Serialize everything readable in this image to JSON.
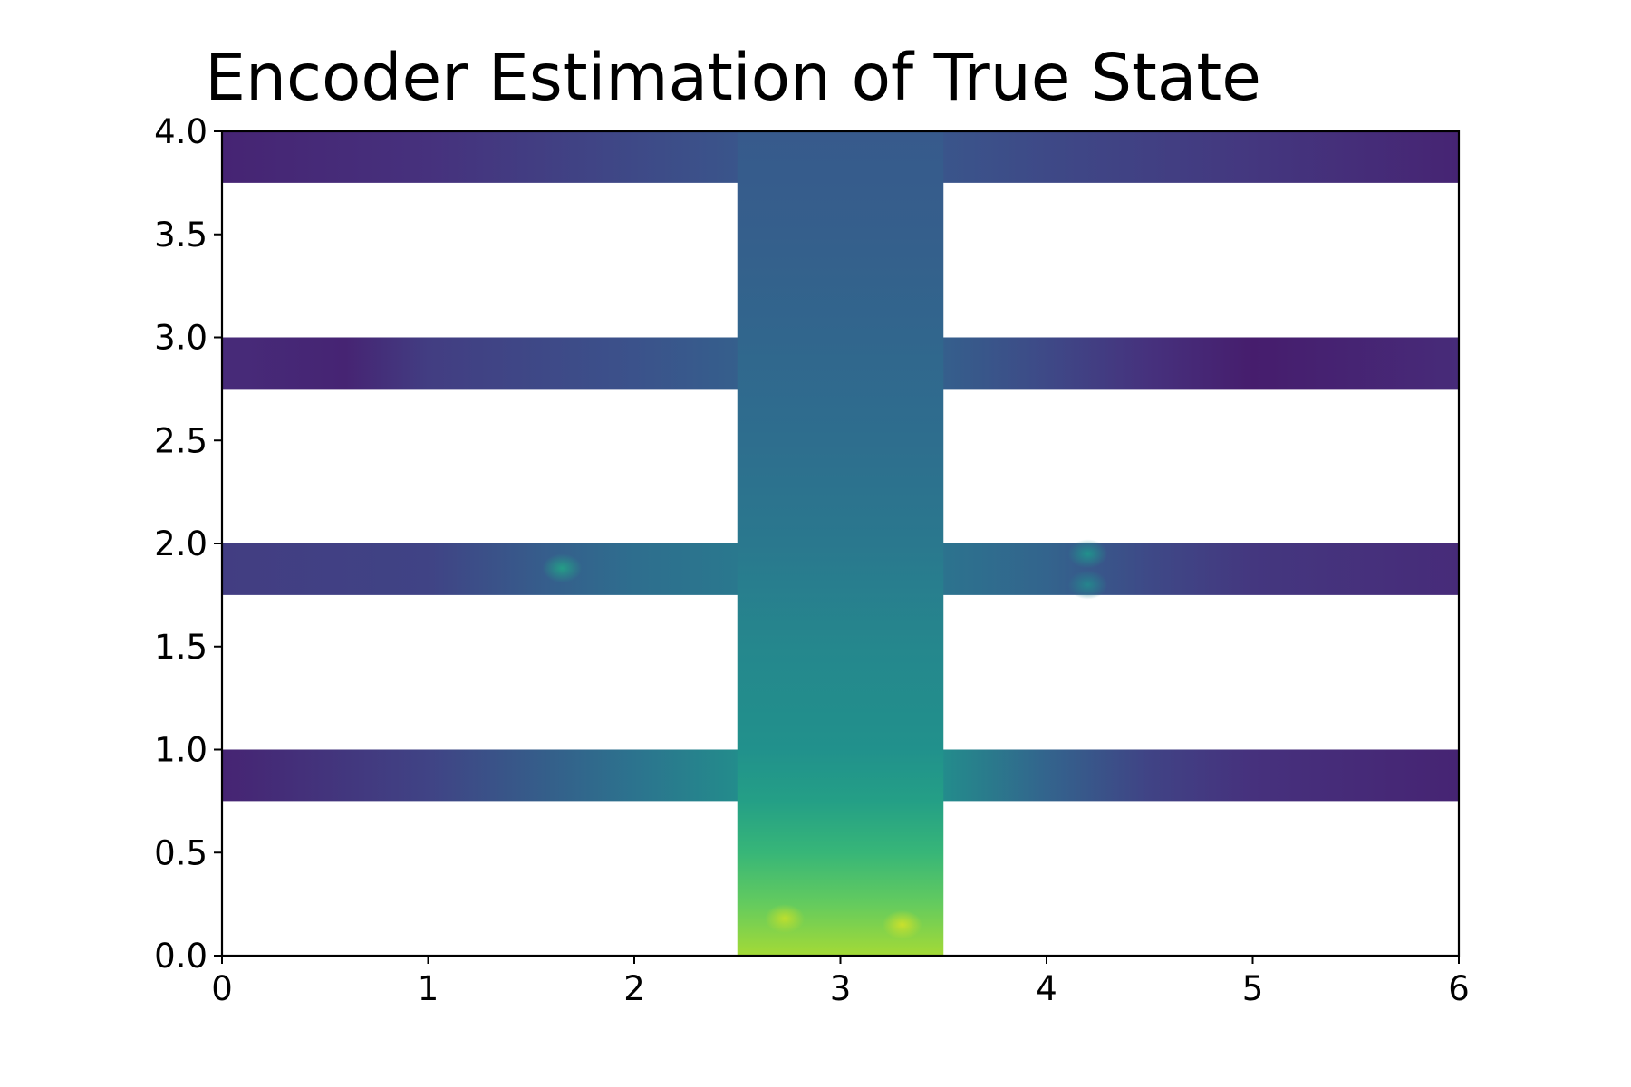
{
  "chart_data": {
    "type": "heatmap",
    "title": "Encoder Estimation of True State",
    "xlabel": "",
    "ylabel": "",
    "xlim": [
      0,
      6
    ],
    "ylim": [
      0,
      4
    ],
    "grid": false,
    "legend": "none",
    "x_ticks": [
      0,
      1,
      2,
      3,
      4,
      5,
      6
    ],
    "x_tick_labels": [
      "0",
      "1",
      "2",
      "3",
      "4",
      "5",
      "6"
    ],
    "y_ticks": [
      0.0,
      0.5,
      1.0,
      1.5,
      2.0,
      2.5,
      3.0,
      3.5,
      4.0
    ],
    "y_tick_labels": [
      "0.0",
      "0.5",
      "1.0",
      "1.5",
      "2.0",
      "2.5",
      "3.0",
      "3.5",
      "4.0"
    ],
    "colormap": "viridis",
    "colormap_stops": [
      "#440154",
      "#472d7b",
      "#3b528b",
      "#2c728e",
      "#21918c",
      "#28ae80",
      "#5ec962",
      "#addc30",
      "#fde725"
    ],
    "regions": [
      {
        "name": "vertical-corridor",
        "x": [
          2.5,
          3.5
        ],
        "y": [
          0.0,
          4.0
        ]
      },
      {
        "name": "branch-y4",
        "x": [
          0,
          6
        ],
        "y": [
          3.75,
          4.0
        ]
      },
      {
        "name": "branch-y3",
        "x": [
          0,
          6
        ],
        "y": [
          2.75,
          3.0
        ]
      },
      {
        "name": "branch-y2",
        "x": [
          0,
          6
        ],
        "y": [
          1.75,
          2.0
        ]
      },
      {
        "name": "branch-y1",
        "x": [
          0,
          6
        ],
        "y": [
          0.75,
          1.0
        ]
      }
    ],
    "value_range": [
      0.0,
      1.0
    ],
    "corridor_value_by_height": [
      {
        "y": 0.0,
        "value": 0.86
      },
      {
        "y": 0.25,
        "value": 0.76
      },
      {
        "y": 0.5,
        "value": 0.66
      },
      {
        "y": 0.75,
        "value": 0.56
      },
      {
        "y": 1.0,
        "value": 0.5
      },
      {
        "y": 1.5,
        "value": 0.46
      },
      {
        "y": 2.0,
        "value": 0.4
      },
      {
        "y": 2.5,
        "value": 0.36
      },
      {
        "y": 3.0,
        "value": 0.33
      },
      {
        "y": 3.5,
        "value": 0.3
      },
      {
        "y": 4.0,
        "value": 0.28
      }
    ],
    "branch_value_by_x": {
      "branch-y4": [
        {
          "x": 0,
          "value": 0.1
        },
        {
          "x": 1,
          "value": 0.14
        },
        {
          "x": 2,
          "value": 0.22
        },
        {
          "x": 2.5,
          "value": 0.26
        },
        {
          "x": 3.5,
          "value": 0.26
        },
        {
          "x": 4,
          "value": 0.22
        },
        {
          "x": 5,
          "value": 0.16
        },
        {
          "x": 6,
          "value": 0.1
        }
      ],
      "branch-y3": [
        {
          "x": 0,
          "value": 0.12
        },
        {
          "x": 0.6,
          "value": 0.1
        },
        {
          "x": 1,
          "value": 0.18
        },
        {
          "x": 2,
          "value": 0.25
        },
        {
          "x": 2.5,
          "value": 0.3
        },
        {
          "x": 3.5,
          "value": 0.3
        },
        {
          "x": 4,
          "value": 0.22
        },
        {
          "x": 4.5,
          "value": 0.14
        },
        {
          "x": 5,
          "value": 0.08
        },
        {
          "x": 6,
          "value": 0.12
        }
      ],
      "branch-y2": [
        {
          "x": 0,
          "value": 0.18
        },
        {
          "x": 1,
          "value": 0.2
        },
        {
          "x": 1.6,
          "value": 0.3
        },
        {
          "x": 2,
          "value": 0.36
        },
        {
          "x": 2.5,
          "value": 0.4
        },
        {
          "x": 3.5,
          "value": 0.38
        },
        {
          "x": 4,
          "value": 0.32
        },
        {
          "x": 4.5,
          "value": 0.22
        },
        {
          "x": 5,
          "value": 0.16
        },
        {
          "x": 6,
          "value": 0.12
        }
      ],
      "branch-y1": [
        {
          "x": 0,
          "value": 0.1
        },
        {
          "x": 1,
          "value": 0.2
        },
        {
          "x": 2,
          "value": 0.38
        },
        {
          "x": 2.5,
          "value": 0.48
        },
        {
          "x": 3.5,
          "value": 0.48
        },
        {
          "x": 4,
          "value": 0.32
        },
        {
          "x": 4.5,
          "value": 0.2
        },
        {
          "x": 5,
          "value": 0.14
        },
        {
          "x": 6,
          "value": 0.1
        }
      ]
    },
    "hotspots": [
      {
        "x": 1.65,
        "y": 1.88,
        "value": 0.55
      },
      {
        "x": 4.2,
        "y": 1.95,
        "value": 0.5
      },
      {
        "x": 4.2,
        "y": 1.8,
        "value": 0.45
      },
      {
        "x": 2.73,
        "y": 0.18,
        "value": 0.9
      },
      {
        "x": 3.3,
        "y": 0.15,
        "value": 0.92
      }
    ]
  }
}
